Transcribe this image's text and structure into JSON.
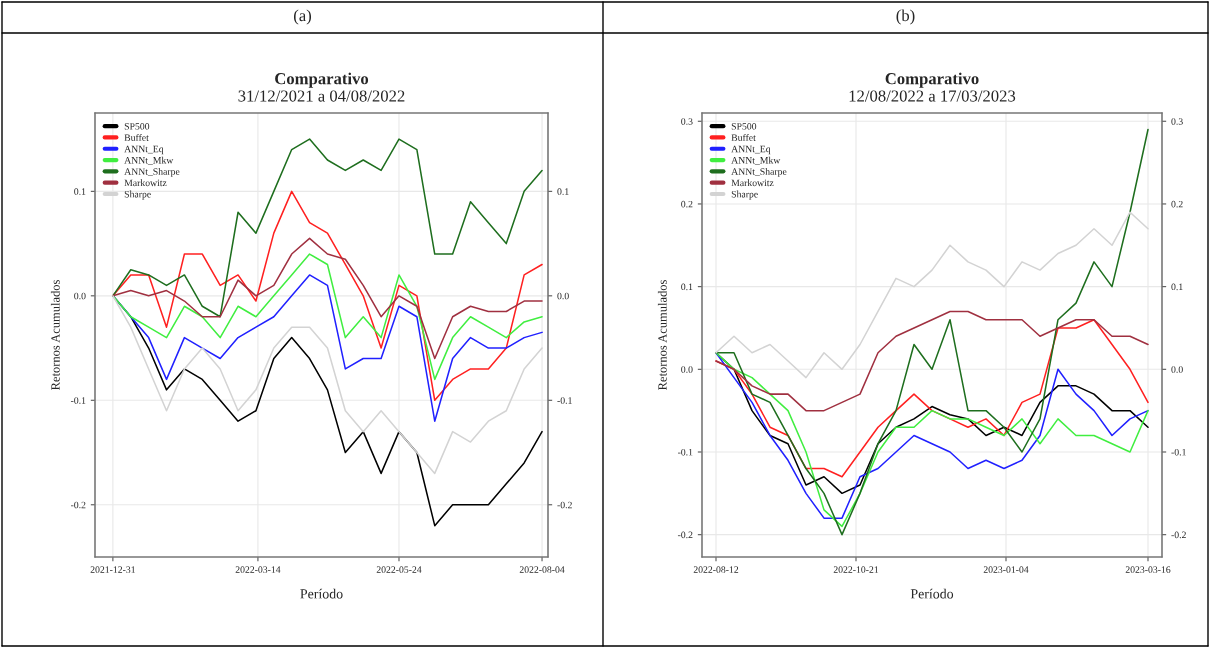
{
  "chart_data": [
    {
      "type": "line",
      "title": "Comparativo",
      "subtitle": "31/12/2021 a 04/08/2022",
      "xlabel": "Período",
      "ylabel": "Retornos Acumulados",
      "annotations": [
        "(a)"
      ],
      "x": [
        "2021-12-31",
        "2022-01-09",
        "2022-01-18",
        "2022-01-27",
        "2022-02-05",
        "2022-02-14",
        "2022-02-23",
        "2022-03-04",
        "2022-03-13",
        "2022-03-22",
        "2022-03-31",
        "2022-04-09",
        "2022-04-18",
        "2022-04-27",
        "2022-05-06",
        "2022-05-15",
        "2022-05-24",
        "2022-06-02",
        "2022-06-11",
        "2022-06-20",
        "2022-06-29",
        "2022-07-08",
        "2022-07-17",
        "2022-07-26",
        "2022-08-04"
      ],
      "series": [
        {
          "name": "SP500",
          "color": "#000000",
          "values": [
            0,
            -0.02,
            -0.05,
            -0.09,
            -0.07,
            -0.08,
            -0.1,
            -0.12,
            -0.11,
            -0.06,
            -0.04,
            -0.06,
            -0.09,
            -0.15,
            -0.13,
            -0.17,
            -0.13,
            -0.15,
            -0.22,
            -0.2,
            -0.2,
            -0.2,
            -0.18,
            -0.16,
            -0.13
          ]
        },
        {
          "name": "Buffet",
          "color": "#ff2020",
          "values": [
            0,
            0.02,
            0.02,
            -0.03,
            0.04,
            0.04,
            0.01,
            0.02,
            -0.005,
            0.06,
            0.1,
            0.07,
            0.06,
            0.03,
            0.0,
            -0.05,
            0.01,
            0.0,
            -0.1,
            -0.08,
            -0.07,
            -0.07,
            -0.05,
            0.02,
            0.03
          ]
        },
        {
          "name": "ANNt_Eq",
          "color": "#2020ff",
          "values": [
            0,
            -0.02,
            -0.04,
            -0.08,
            -0.04,
            -0.05,
            -0.06,
            -0.04,
            -0.03,
            -0.02,
            0.0,
            0.02,
            0.01,
            -0.07,
            -0.06,
            -0.06,
            -0.01,
            -0.02,
            -0.12,
            -0.06,
            -0.04,
            -0.05,
            -0.05,
            -0.04,
            -0.035
          ]
        },
        {
          "name": "ANNt_Mkw",
          "color": "#40ee40",
          "values": [
            0,
            -0.02,
            -0.03,
            -0.04,
            -0.01,
            -0.02,
            -0.04,
            -0.01,
            -0.02,
            0.0,
            0.02,
            0.04,
            0.03,
            -0.04,
            -0.02,
            -0.04,
            0.02,
            -0.01,
            -0.08,
            -0.04,
            -0.02,
            -0.03,
            -0.04,
            -0.025,
            -0.02
          ]
        },
        {
          "name": "ANNt_Sharpe",
          "color": "#1e6e1e",
          "values": [
            0,
            0.025,
            0.02,
            0.01,
            0.02,
            -0.01,
            -0.02,
            0.08,
            0.06,
            0.1,
            0.14,
            0.15,
            0.13,
            0.12,
            0.13,
            0.12,
            0.15,
            0.14,
            0.04,
            0.04,
            0.09,
            0.07,
            0.05,
            0.1,
            0.12
          ]
        },
        {
          "name": "Markowitz",
          "color": "#a03040",
          "values": [
            0,
            0.005,
            0.0,
            0.005,
            -0.005,
            -0.02,
            -0.02,
            0.015,
            0.0,
            0.01,
            0.04,
            0.055,
            0.04,
            0.035,
            0.01,
            -0.02,
            0.0,
            -0.01,
            -0.06,
            -0.02,
            -0.01,
            -0.015,
            -0.015,
            -0.005,
            -0.005
          ]
        },
        {
          "name": "Sharpe",
          "color": "#d3d3d3",
          "values": [
            0,
            -0.03,
            -0.07,
            -0.11,
            -0.07,
            -0.05,
            -0.07,
            -0.11,
            -0.09,
            -0.05,
            -0.03,
            -0.03,
            -0.05,
            -0.11,
            -0.13,
            -0.11,
            -0.13,
            -0.15,
            -0.17,
            -0.13,
            -0.14,
            -0.12,
            -0.11,
            -0.07,
            -0.05
          ]
        }
      ],
      "xlim": [
        "2021-12-22",
        "2022-08-07"
      ],
      "xticks": [
        "2021-12-31",
        "2022-03-14",
        "2022-05-24",
        "2022-08-04"
      ],
      "ylim": [
        -0.25,
        0.175
      ],
      "yticks": [
        -0.2,
        -0.1,
        {
          "value": 0,
          "label": "0.0"
        },
        0.1
      ],
      "y2lim": [
        -0.25,
        0.175
      ],
      "y2ticks": [
        -0.2,
        -0.1,
        {
          "value": 0,
          "label": "0.0"
        },
        0.1
      ],
      "grid": true,
      "legend": "top left"
    },
    {
      "type": "line",
      "title": "Comparativo",
      "subtitle": "12/08/2022 a 17/03/2023",
      "xlabel": "Período",
      "ylabel": "Retornos Acumulados",
      "annotations": [
        "(b)"
      ],
      "x": [
        "2022-08-12",
        "2022-08-21",
        "2022-08-30",
        "2022-09-08",
        "2022-09-17",
        "2022-09-26",
        "2022-10-05",
        "2022-10-14",
        "2022-10-23",
        "2022-11-01",
        "2022-11-10",
        "2022-11-19",
        "2022-11-28",
        "2022-12-07",
        "2022-12-16",
        "2022-12-25",
        "2023-01-03",
        "2023-01-12",
        "2023-01-21",
        "2023-01-30",
        "2023-02-08",
        "2023-02-17",
        "2023-02-26",
        "2023-03-07",
        "2023-03-16"
      ],
      "series": [
        {
          "name": "SP500",
          "color": "#000000",
          "values": [
            0.02,
            0.0,
            -0.05,
            -0.08,
            -0.09,
            -0.14,
            -0.13,
            -0.15,
            -0.14,
            -0.09,
            -0.07,
            -0.06,
            -0.045,
            -0.055,
            -0.06,
            -0.08,
            -0.07,
            -0.08,
            -0.04,
            -0.02,
            -0.02,
            -0.03,
            -0.05,
            -0.05,
            -0.07
          ]
        },
        {
          "name": "Buffet",
          "color": "#ff2020",
          "values": [
            0.01,
            0.0,
            -0.03,
            -0.07,
            -0.08,
            -0.12,
            -0.12,
            -0.13,
            -0.1,
            -0.07,
            -0.05,
            -0.03,
            -0.05,
            -0.06,
            -0.07,
            -0.06,
            -0.08,
            -0.04,
            -0.03,
            0.05,
            0.05,
            0.06,
            0.03,
            0.0,
            -0.04
          ]
        },
        {
          "name": "ANNt_Eq",
          "color": "#2020ff",
          "values": [
            0.02,
            -0.01,
            -0.04,
            -0.08,
            -0.11,
            -0.15,
            -0.18,
            -0.18,
            -0.13,
            -0.12,
            -0.1,
            -0.08,
            -0.09,
            -0.1,
            -0.12,
            -0.11,
            -0.12,
            -0.11,
            -0.08,
            0.0,
            -0.03,
            -0.05,
            -0.08,
            -0.06,
            -0.05
          ]
        },
        {
          "name": "ANNt_Mkw",
          "color": "#40ee40",
          "values": [
            0.02,
            0.0,
            -0.01,
            -0.03,
            -0.05,
            -0.1,
            -0.17,
            -0.19,
            -0.15,
            -0.1,
            -0.07,
            -0.07,
            -0.05,
            -0.06,
            -0.06,
            -0.07,
            -0.08,
            -0.06,
            -0.09,
            -0.06,
            -0.08,
            -0.08,
            -0.09,
            -0.1,
            -0.05
          ]
        },
        {
          "name": "ANNt_Sharpe",
          "color": "#1e6e1e",
          "values": [
            0.02,
            0.02,
            -0.03,
            -0.04,
            -0.08,
            -0.12,
            -0.15,
            -0.2,
            -0.15,
            -0.09,
            -0.05,
            0.03,
            0.0,
            0.06,
            -0.05,
            -0.05,
            -0.07,
            -0.1,
            -0.06,
            0.06,
            0.08,
            0.13,
            0.1,
            0.19,
            0.29
          ]
        },
        {
          "name": "Markowitz",
          "color": "#a03040",
          "values": [
            0.01,
            0.0,
            -0.02,
            -0.03,
            -0.03,
            -0.05,
            -0.05,
            -0.04,
            -0.03,
            0.02,
            0.04,
            0.05,
            0.06,
            0.07,
            0.07,
            0.06,
            0.06,
            0.06,
            0.04,
            0.05,
            0.06,
            0.06,
            0.04,
            0.04,
            0.03
          ]
        },
        {
          "name": "Sharpe",
          "color": "#d3d3d3",
          "values": [
            0.02,
            0.04,
            0.02,
            0.03,
            0.01,
            -0.01,
            0.02,
            0.0,
            0.03,
            0.07,
            0.11,
            0.1,
            0.12,
            0.15,
            0.13,
            0.12,
            0.1,
            0.13,
            0.12,
            0.14,
            0.15,
            0.17,
            0.15,
            0.19,
            0.17
          ]
        }
      ],
      "xlim": [
        "2022-08-05",
        "2023-03-23"
      ],
      "xticks": [
        "2022-08-12",
        "2022-10-21",
        "2023-01-04",
        "2023-03-16"
      ],
      "ylim": [
        -0.227,
        0.31
      ],
      "yticks": [
        -0.2,
        -0.1,
        {
          "value": 0,
          "label": "0.0"
        },
        0.1,
        0.2,
        0.3
      ],
      "y2lim": [
        -0.227,
        0.31
      ],
      "y2ticks": [
        -0.2,
        -0.1,
        {
          "value": 0,
          "label": "0.0"
        },
        0.1,
        0.2,
        0.3
      ],
      "grid": true,
      "legend": "top left"
    }
  ]
}
